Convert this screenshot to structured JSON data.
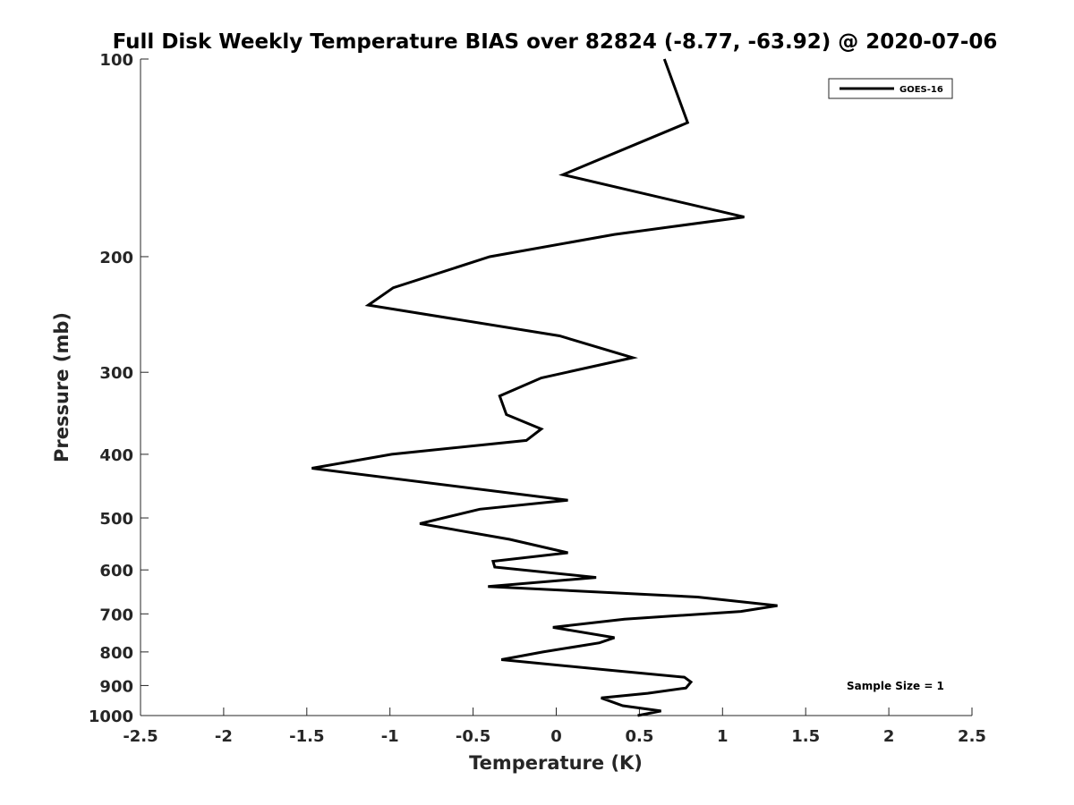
{
  "chart_data": {
    "type": "line",
    "title": "Full Disk Weekly Temperature BIAS over 82824 (-8.77, -63.92) @ 2020-07-06",
    "xlabel": "Temperature (K)",
    "ylabel": "Pressure (mb)",
    "xlim": [
      -2.5,
      2.5
    ],
    "ylim": [
      100,
      1000
    ],
    "y_scale": "log",
    "y_reversed": true,
    "grid": false,
    "x_ticks": [
      -2.5,
      -2,
      -1.5,
      -1,
      -0.5,
      0,
      0.5,
      1,
      1.5,
      2,
      2.5
    ],
    "x_tick_labels": [
      "-2.5",
      "-2",
      "-1.5",
      "-1",
      "-0.5",
      "0",
      "0.5",
      "1",
      "1.5",
      "2",
      "2.5"
    ],
    "y_ticks": [
      100,
      200,
      300,
      400,
      500,
      600,
      700,
      800,
      900,
      1000
    ],
    "y_tick_labels": [
      "100",
      "200",
      "300",
      "400",
      "500",
      "600",
      "700",
      "800",
      "900",
      "1000"
    ],
    "legend": {
      "placement": "top-right",
      "entries": [
        "GOES-16"
      ]
    },
    "annotation": "Sample Size = 1",
    "series": [
      {
        "name": "GOES-16",
        "color": "#000000",
        "points": [
          [
            0.65,
            100
          ],
          [
            0.79,
            125
          ],
          [
            0.04,
            150
          ],
          [
            1.13,
            174
          ],
          [
            0.35,
            185
          ],
          [
            -0.4,
            200
          ],
          [
            -0.98,
            223
          ],
          [
            -1.13,
            237
          ],
          [
            0.02,
            264
          ],
          [
            0.46,
            285
          ],
          [
            -0.09,
            306
          ],
          [
            -0.34,
            326
          ],
          [
            -0.3,
            348
          ],
          [
            -0.09,
            366
          ],
          [
            -0.18,
            381
          ],
          [
            -0.99,
            400
          ],
          [
            -1.47,
            420
          ],
          [
            0.07,
            470
          ],
          [
            -0.46,
            485
          ],
          [
            -0.82,
            510
          ],
          [
            -0.28,
            539
          ],
          [
            0.07,
            565
          ],
          [
            -0.38,
            582
          ],
          [
            -0.37,
            594
          ],
          [
            0.24,
            616
          ],
          [
            -0.41,
            636
          ],
          [
            0.85,
            660
          ],
          [
            1.33,
            680
          ],
          [
            1.11,
            694
          ],
          [
            0.41,
            713
          ],
          [
            -0.02,
            734
          ],
          [
            0.35,
            761
          ],
          [
            0.26,
            775
          ],
          [
            -0.08,
            800
          ],
          [
            -0.33,
            822
          ],
          [
            0.3,
            852
          ],
          [
            0.77,
            874
          ],
          [
            0.81,
            889
          ],
          [
            0.78,
            908
          ],
          [
            0.55,
            925
          ],
          [
            0.27,
            940
          ],
          [
            0.4,
            966
          ],
          [
            0.63,
            984
          ],
          [
            0.49,
            1000
          ]
        ]
      }
    ]
  }
}
